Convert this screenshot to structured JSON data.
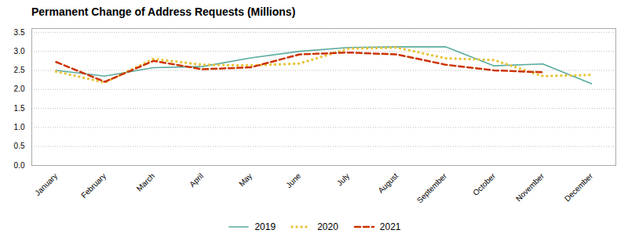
{
  "chart_data": {
    "type": "line",
    "title": "Permanent Change of Address Requests (Millions)",
    "categories": [
      "January",
      "February",
      "March",
      "April",
      "May",
      "June",
      "July",
      "August",
      "September",
      "October",
      "November",
      "December"
    ],
    "series": [
      {
        "name": "2019",
        "color": "#5aab9e",
        "line_style": "solid",
        "values": [
          2.5,
          2.35,
          2.57,
          2.6,
          2.83,
          3.0,
          3.1,
          3.12,
          3.12,
          2.62,
          2.67,
          2.15
        ]
      },
      {
        "name": "2020",
        "color": "#e8c43c",
        "line_style": "dotted",
        "values": [
          2.47,
          2.18,
          2.8,
          2.65,
          2.63,
          2.68,
          3.07,
          3.1,
          2.82,
          2.77,
          2.35,
          2.38
        ]
      },
      {
        "name": "2021",
        "color": "#cc3300",
        "line_style": "dashed",
        "values": [
          2.72,
          2.2,
          2.75,
          2.53,
          2.58,
          2.92,
          2.97,
          2.92,
          2.65,
          2.5,
          2.45,
          null
        ]
      }
    ],
    "ylim": [
      0.0,
      3.6
    ],
    "yticks": [
      {
        "value": 0,
        "label": "0.0"
      },
      0.5,
      {
        "value": 1,
        "label": "1.0"
      },
      1.5,
      {
        "value": 2,
        "label": "2.0"
      },
      2.5,
      {
        "value": 3,
        "label": "3.0"
      },
      3.5
    ],
    "grid": true,
    "legend": "bottom"
  }
}
